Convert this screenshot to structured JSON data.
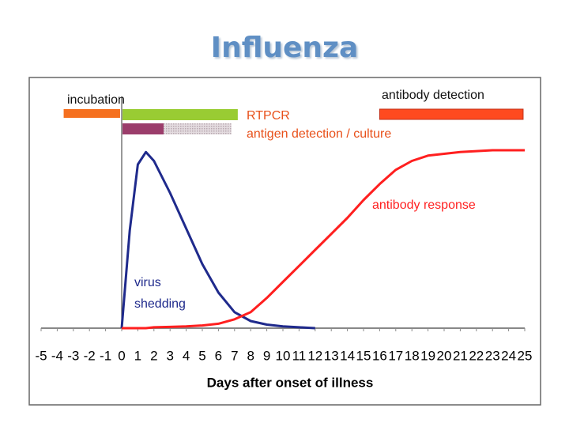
{
  "chart_data": {
    "type": "line",
    "title": "Influenza",
    "xlabel": "Days after onset of illness",
    "x": [
      0,
      0.5,
      1,
      1.5,
      2,
      3,
      4,
      5,
      6,
      7,
      8,
      9,
      10,
      11,
      12,
      13,
      14,
      15,
      16,
      17,
      18,
      19,
      20,
      21,
      22,
      23,
      24,
      25
    ],
    "series": [
      {
        "name": "virus shedding",
        "color": "#1f2a8c",
        "values": [
          0,
          55,
          92,
          99,
          94,
          76,
          56,
          36,
          20,
          9,
          4,
          2,
          1,
          0.5,
          0,
          null,
          null,
          null,
          null,
          null,
          null,
          null,
          null,
          null,
          null,
          null,
          null,
          null
        ]
      },
      {
        "name": "antibody response",
        "color": "#ff1f1f",
        "values": [
          0,
          0,
          0,
          0,
          0.5,
          0.7,
          1,
          1.5,
          2.5,
          5,
          9,
          17,
          26,
          35,
          44,
          53,
          62,
          72,
          81,
          89,
          94,
          97,
          98,
          99,
          99.5,
          100,
          100,
          100
        ]
      }
    ],
    "xlim": [
      -5,
      25
    ],
    "xticks": [
      -5,
      -4,
      -3,
      -2,
      -1,
      0,
      1,
      2,
      3,
      4,
      5,
      6,
      7,
      8,
      9,
      10,
      11,
      12,
      13,
      14,
      15,
      16,
      17,
      18,
      19,
      20,
      21,
      22,
      23,
      24,
      25
    ],
    "ylim": [
      0,
      100
    ],
    "intervals": [
      {
        "label": "incubation",
        "label_color": "#111111",
        "segments": [
          {
            "start": -3.6,
            "end": -0.1,
            "color": "#f5701f"
          }
        ]
      },
      {
        "label": "RTPCR",
        "label_color": "#e8501a",
        "segments": [
          {
            "start": 0.05,
            "end": 7.2,
            "color": "#99cc33"
          }
        ]
      },
      {
        "label": "antigen detection / culture",
        "label_color": "#e8501a",
        "segments": [
          {
            "start": 0.05,
            "end": 2.6,
            "color": "#9b3d6b"
          },
          {
            "start": 2.6,
            "end": 6.8,
            "color": "#cbbcc4"
          }
        ]
      },
      {
        "label": "antibody detection",
        "label_color": "#111111",
        "segments": [
          {
            "start": 16,
            "end": 24.9,
            "color": "#ff4a1f"
          }
        ]
      }
    ]
  }
}
